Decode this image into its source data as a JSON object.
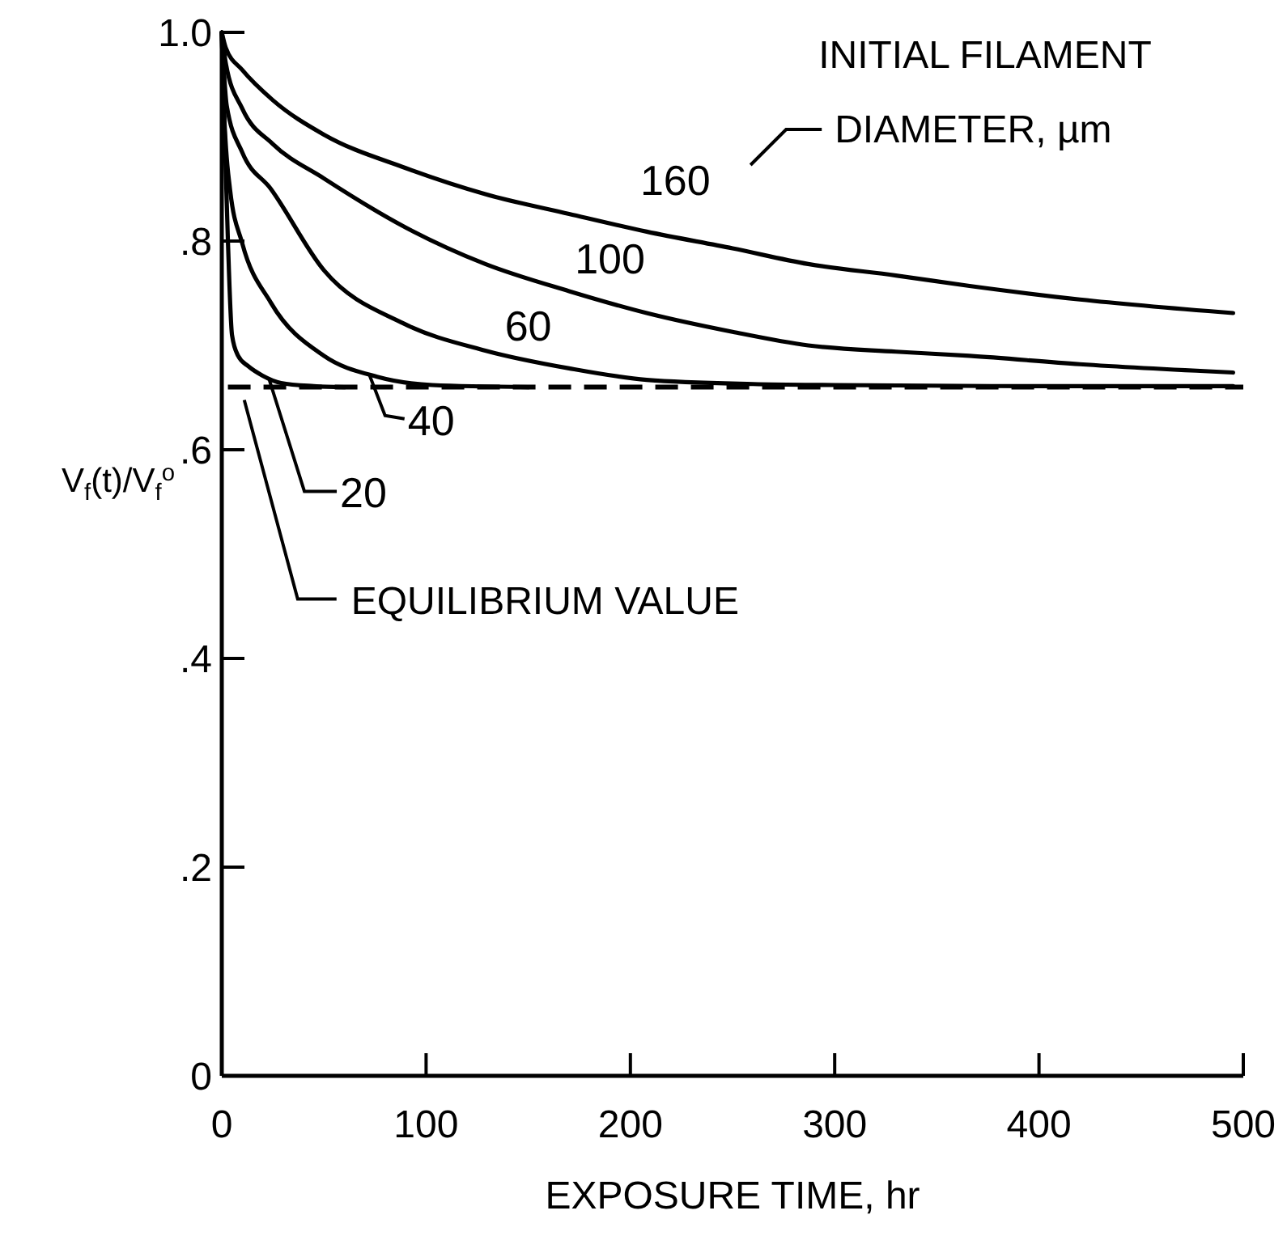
{
  "chart_data": {
    "type": "line",
    "xlabel": "EXPOSURE TIME, hr",
    "ylabel": "V$_{f}$(t)/V$_{f}$$^{o}$",
    "xlim": [
      0,
      500
    ],
    "ylim": [
      0,
      1.0
    ],
    "xticks": [
      0,
      100,
      200,
      300,
      400,
      500
    ],
    "yticks": [
      0,
      {
        "value": 0.2,
        "label": ".2"
      },
      {
        "value": 0.4,
        "label": ".4"
      },
      {
        "value": 0.6,
        "label": ".6"
      },
      {
        "value": 0.8,
        "label": ".8"
      },
      {
        "value": 1.0,
        "label": "1.0"
      }
    ],
    "grid": false,
    "marker": "none",
    "line_style": "solid",
    "annotations": [
      "INITIAL FILAMENT\nDIAMETER, µm"
    ],
    "ref_lines": [
      {
        "axis": "y",
        "value": 0.66,
        "label": "EQUILIBRIUM VALUE",
        "line_style": "dashed",
        "color": "#000000"
      }
    ],
    "series": [
      {
        "name": "160",
        "color": "#000000",
        "x": [
          0,
          2,
          10,
          25,
          50,
          90,
          129,
          170,
          208,
          250,
          287,
          330,
          366,
          420,
          495
        ],
        "values": [
          1.0,
          0.985,
          0.964,
          0.935,
          0.902,
          0.87,
          0.845,
          0.826,
          0.809,
          0.793,
          0.778,
          0.767,
          0.757,
          0.744,
          0.731
        ]
      },
      {
        "name": "100",
        "color": "#000000",
        "x": [
          0,
          2,
          10,
          25,
          50,
          90,
          129,
          170,
          208,
          250,
          287,
          330,
          366,
          420,
          495
        ],
        "values": [
          1.0,
          0.97,
          0.927,
          0.893,
          0.86,
          0.813,
          0.778,
          0.752,
          0.731,
          0.713,
          0.7,
          0.694,
          0.69,
          0.682,
          0.674
        ]
      },
      {
        "name": "60",
        "color": "#000000",
        "x": [
          0,
          2.4,
          10,
          24,
          50,
          89,
          129,
          170,
          208,
          260,
          300,
          400,
          495
        ],
        "values": [
          1.0,
          0.93,
          0.885,
          0.85,
          0.772,
          0.721,
          0.695,
          0.678,
          0.667,
          0.663,
          0.662,
          0.661,
          0.661
        ]
      },
      {
        "name": "40",
        "color": "#000000",
        "x": [
          0,
          1,
          4,
          10,
          24,
          50,
          76,
          103,
          150
        ],
        "values": [
          1.0,
          0.93,
          0.85,
          0.798,
          0.741,
          0.69,
          0.67,
          0.662,
          0.66
        ]
      },
      {
        "name": "20",
        "color": "#000000",
        "x": [
          0,
          1,
          3,
          5,
          8,
          13,
          20,
          29,
          45,
          60
        ],
        "values": [
          1.0,
          0.93,
          0.8,
          0.71,
          0.69,
          0.68,
          0.671,
          0.664,
          0.661,
          0.66
        ]
      }
    ]
  }
}
